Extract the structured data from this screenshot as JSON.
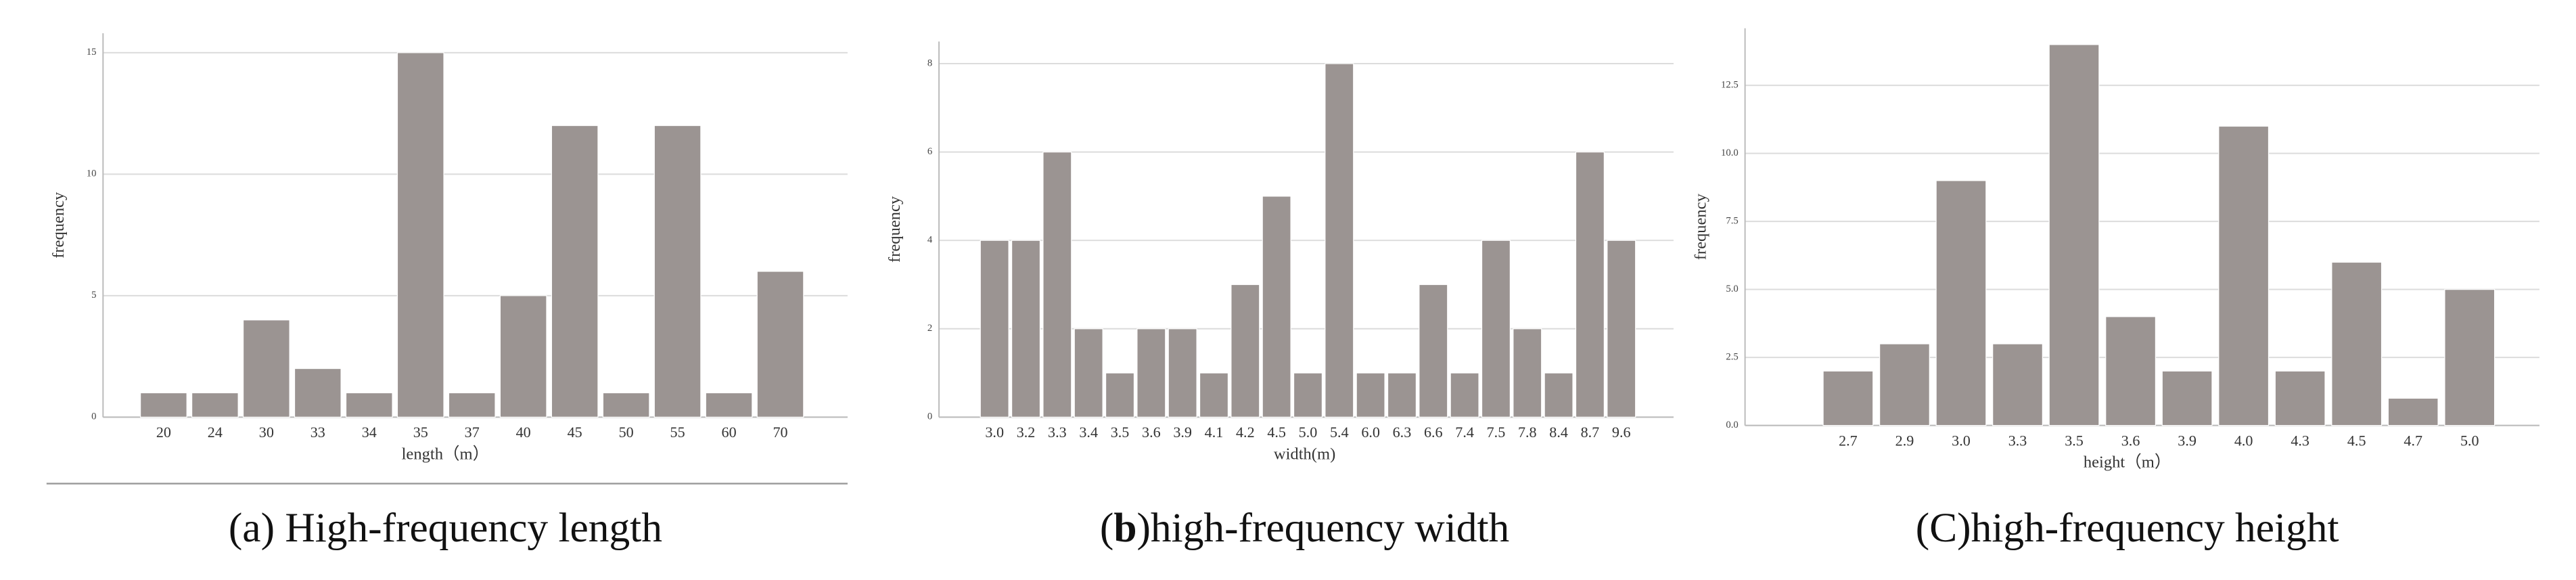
{
  "chart_data": [
    {
      "type": "bar",
      "caption": "(a) High-frequency length",
      "xlabel": "length（m）",
      "ylabel": "frequency",
      "color": "#9b9492",
      "grid": true,
      "categories": [
        "20",
        "24",
        "30",
        "33",
        "34",
        "35",
        "37",
        "40",
        "45",
        "50",
        "55",
        "60",
        "70"
      ],
      "values": [
        1,
        1,
        4,
        2,
        1,
        15,
        1,
        5,
        12,
        1,
        12,
        1,
        6
      ],
      "ylim": [
        0,
        15.8
      ],
      "yticks": [
        0,
        5,
        10,
        15
      ]
    },
    {
      "type": "bar",
      "caption": [
        "(",
        "b",
        ")high-frequency width"
      ],
      "xlabel": "width(m)",
      "ylabel": "frequency",
      "color": "#9b9492",
      "grid": true,
      "categories": [
        "3.0",
        "3.2",
        "3.3",
        "3.4",
        "3.5",
        "3.6",
        "3.9",
        "4.1",
        "4.2",
        "4.5",
        "5.0",
        "5.4",
        "6.0",
        "6.3",
        "6.6",
        "7.4",
        "7.5",
        "7.8",
        "8.4",
        "8.7",
        "9.6"
      ],
      "values": [
        4,
        4,
        6,
        2,
        1,
        2,
        2,
        1,
        3,
        5,
        1,
        8,
        1,
        1,
        3,
        1,
        4,
        2,
        1,
        6,
        4
      ],
      "ylim": [
        0,
        8.5
      ],
      "yticks": [
        0,
        2,
        4,
        6,
        8
      ]
    },
    {
      "type": "bar",
      "caption": "(C)high-frequency height",
      "xlabel": "height（m）",
      "ylabel": "frequency",
      "color": "#9b9492",
      "grid": true,
      "categories": [
        "2.7",
        "2.9",
        "3.0",
        "3.3",
        "3.5",
        "3.6",
        "3.9",
        "4.0",
        "4.3",
        "4.5",
        "4.7",
        "5.0"
      ],
      "values": [
        2,
        3,
        9,
        3,
        14,
        4,
        2,
        11,
        2,
        6,
        1,
        5
      ],
      "ylim": [
        0,
        14.6
      ],
      "yticks": [
        {
          "value": 0,
          "label": "0.0"
        },
        {
          "value": 2.5,
          "label": "2.5"
        },
        {
          "value": 5,
          "label": "5.0"
        },
        {
          "value": 7.5,
          "label": "7.5"
        },
        {
          "value": 10,
          "label": "10.0"
        },
        {
          "value": 12.5,
          "label": "12.5"
        }
      ]
    }
  ]
}
